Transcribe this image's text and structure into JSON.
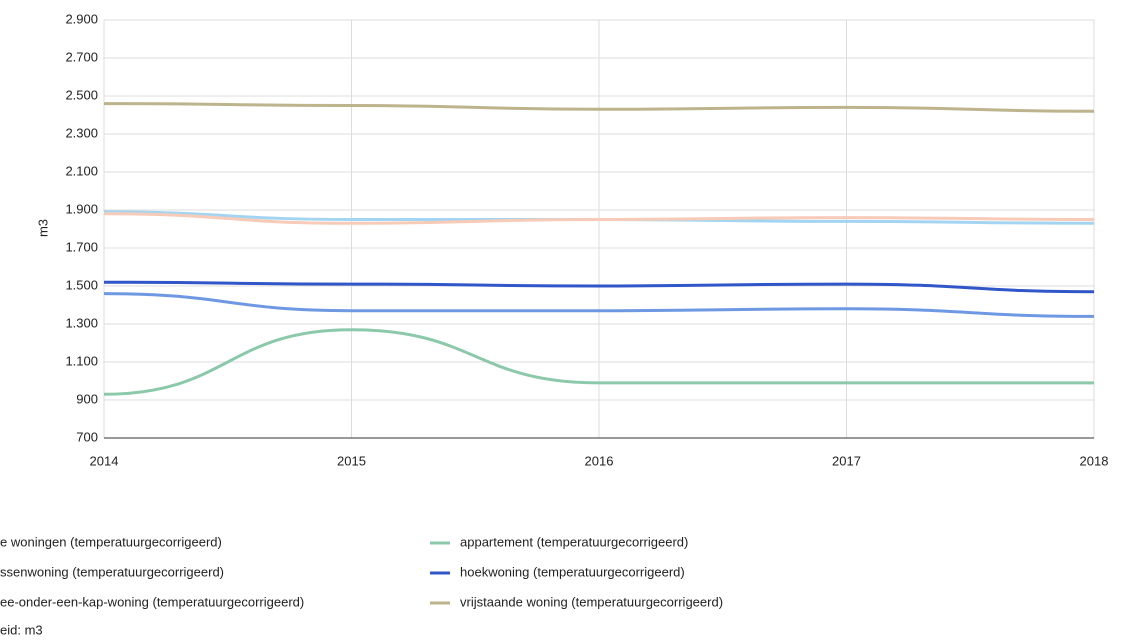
{
  "chart_data": {
    "type": "line",
    "y_label": "m3",
    "footnote": "eid: m3",
    "x": [
      2014,
      2015,
      2016,
      2017,
      2018
    ],
    "xlim": [
      2014,
      2018
    ],
    "xticks": [
      2014,
      2015,
      2016,
      2017,
      2018
    ],
    "ylim": [
      700,
      2900
    ],
    "yticks": [
      700,
      900,
      {
        "value": 1100,
        "label": "1.100"
      },
      {
        "value": 1300,
        "label": "1.300"
      },
      {
        "value": 1500,
        "label": "1.500"
      },
      {
        "value": 1700,
        "label": "1.700"
      },
      {
        "value": 1900,
        "label": "1.900"
      },
      {
        "value": 2100,
        "label": "2.100"
      },
      {
        "value": 2300,
        "label": "2.300"
      },
      {
        "value": 2500,
        "label": "2.500"
      },
      {
        "value": 2700,
        "label": "2.700"
      },
      {
        "value": 2900,
        "label": "2.900"
      }
    ],
    "grid": true,
    "series": [
      {
        "name": "e woningen (temperatuurgecorrigeerd)",
        "color": "#a3d5f2",
        "values": [
          1890,
          1850,
          1850,
          1840,
          1830
        ]
      },
      {
        "name": "appartement (temperatuurgecorrigeerd)",
        "color": "#8cc9aa",
        "values": [
          930,
          1270,
          990,
          990,
          990
        ]
      },
      {
        "name": "ssenwoning (temperatuurgecorrigeerd)",
        "color": "#6f98e2",
        "values": [
          1460,
          1370,
          1370,
          1380,
          1340
        ]
      },
      {
        "name": "hoekwoning (temperatuurgecorrigeerd)",
        "color": "#3156c9",
        "values": [
          1520,
          1510,
          1500,
          1510,
          1470
        ]
      },
      {
        "name": "ee-onder-een-kap-woning (temperatuurgecorrigeerd)",
        "color": "#f7cbb8",
        "values": [
          1880,
          1830,
          1850,
          1860,
          1850
        ]
      },
      {
        "name": "vrijstaande woning (temperatuurgecorrigeerd)",
        "color": "#bdb38c",
        "values": [
          2460,
          2450,
          2430,
          2440,
          2420
        ]
      }
    ]
  }
}
